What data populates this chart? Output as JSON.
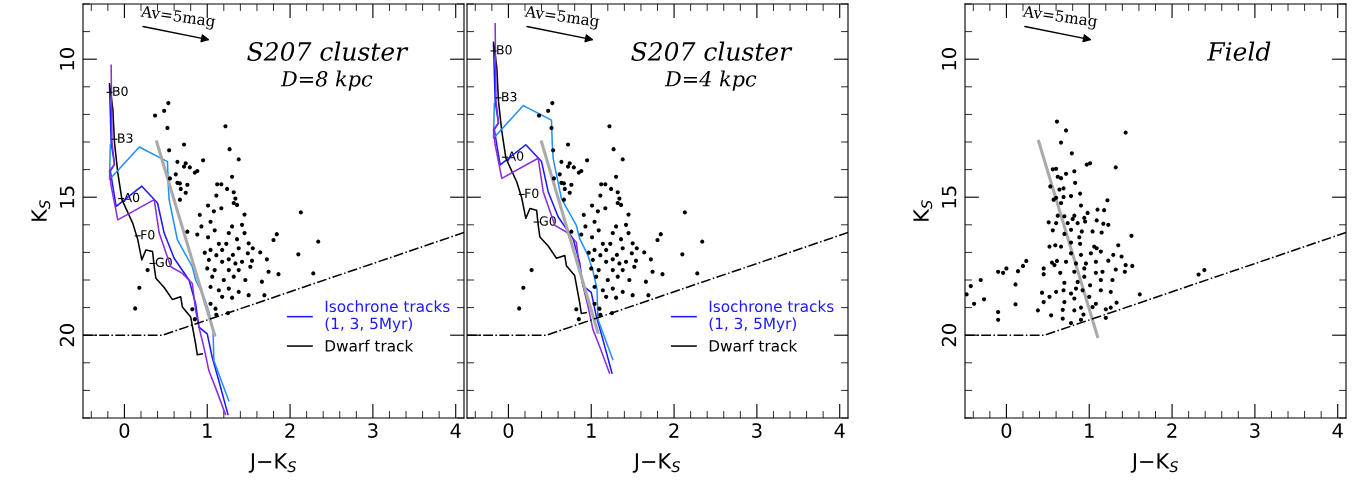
{
  "chart_data": [
    {
      "type": "scatter",
      "title": "S207 cluster",
      "subtitle": "D=8 kpc",
      "xlabel": "J−K$_{S}$",
      "ylabel": "K$_{S}$",
      "xlim": [
        -0.5,
        4.1
      ],
      "ylim": [
        23,
        8
      ],
      "xticks": [
        0,
        1,
        2,
        3,
        4
      ],
      "yticks": [
        10,
        15,
        20
      ],
      "grid": false,
      "legend": "bottom right",
      "annotations": [
        "Av=5mag",
        {
          "text": "B0",
          "x": -0.18,
          "y": 11.2
        },
        {
          "text": "B3",
          "x": -0.12,
          "y": 12.9
        },
        {
          "text": "A0",
          "x": -0.04,
          "y": 15.05
        },
        {
          "text": "F0",
          "x": 0.16,
          "y": 16.4
        },
        {
          "text": "G0",
          "x": 0.34,
          "y": 17.4
        }
      ],
      "series": [
        {
          "type": "line",
          "name": "Isochrone tracks\n(1, 3, 5Myr)",
          "color": "#1a1aff",
          "line_style": "solid",
          "x": [
            -0.18,
            -0.16,
            -0.12,
            -0.17,
            -0.14,
            -0.1,
            0.21,
            0.4,
            0.48,
            0.6,
            0.78,
            0.86,
            0.9,
            1.0,
            1.06,
            1.14,
            1.25
          ],
          "values": [
            10.95,
            13.02,
            13.81,
            14.05,
            14.6,
            15.33,
            14.6,
            15.21,
            16.3,
            17.21,
            18.0,
            18.86,
            19.71,
            19.95,
            20.8,
            21.65,
            22.87
          ]
        },
        {
          "type": "line",
          "name": "Dwarf track",
          "color": "#000000",
          "line_style": "solid",
          "x": [
            -0.18,
            -0.14,
            -0.12,
            -0.08,
            -0.03,
            0.1,
            0.16,
            0.21,
            0.26,
            0.34,
            0.36,
            0.38,
            0.48,
            0.58,
            0.68,
            0.7,
            0.8,
            0.83,
            0.86,
            0.88,
            0.94
          ],
          "values": [
            10.89,
            11.8,
            13.02,
            14.11,
            15.09,
            15.94,
            16.52,
            17.27,
            16.91,
            16.97,
            17.52,
            17.94,
            18.27,
            18.71,
            18.61,
            18.98,
            19.34,
            19.83,
            20.32,
            20.71,
            20.68
          ]
        },
        {
          "type": "line",
          "color": "#1e90ff",
          "line_style": "solid",
          "x": [
            -0.17,
            -0.18,
            0.18,
            0.52,
            0.53,
            0.54,
            0.64,
            0.82,
            0.86,
            0.96,
            1.02,
            1.07,
            1.08,
            1.17,
            1.26
          ],
          "values": [
            13.1,
            14.36,
            13.18,
            13.71,
            14.6,
            15.09,
            16.55,
            17.52,
            18.0,
            18.61,
            19.16,
            19.83,
            20.92,
            21.65,
            22.38
          ]
        },
        {
          "type": "line",
          "color": "#8a2be2",
          "line_style": "solid",
          "x": [
            -0.16,
            -0.15,
            -0.12,
            -0.18,
            -0.16,
            -0.08,
            0.36,
            0.42,
            0.56,
            0.7,
            0.82,
            0.86,
            0.9,
            0.96,
            1.02,
            1.1,
            1.22
          ],
          "values": [
            10.22,
            13.02,
            13.81,
            14.05,
            14.6,
            15.82,
            15.09,
            16.3,
            17.52,
            17.76,
            18.13,
            19.1,
            19.71,
            20.44,
            21.29,
            21.9,
            22.87
          ]
        },
        {
          "type": "line",
          "color": "#aaaaaa",
          "line_style": "solid",
          "x": [
            0.39,
            1.09
          ],
          "values": [
            13.0,
            20.0
          ]
        },
        {
          "type": "line",
          "color": "#000000",
          "line_style": "dashdot",
          "x": [
            -0.5,
            0.46,
            4.1
          ],
          "values": [
            20.0,
            20.0,
            16.28
          ]
        },
        {
          "type": "scatter",
          "color": "#000000",
          "marker": "circle",
          "x": [
            0.53,
            0.48,
            0.37,
            0.52,
            1.22,
            0.72,
            0.54,
            1.27,
            1.38,
            0.95,
            0.64,
            0.74,
            0.72,
            0.79,
            0.88,
            0.85,
            0.62,
            1.3,
            0.55,
            0.64,
            0.67,
            0.76,
            1.12,
            1.17,
            0.68,
            1.24,
            0.74,
            1.32,
            1.11,
            0.67,
            1.34,
            1.32,
            1.01,
            1.17,
            1.36,
            2.13,
            0.91,
            1.08,
            1.45,
            0.93,
            1.04,
            0.76,
            0.88,
            1.09,
            1.3,
            1.42,
            1.45,
            1.84,
            1.8,
            2.34,
            1.01,
            1.14,
            1.23,
            1.36,
            1.5,
            1.04,
            1.18,
            1.38,
            1.55,
            1.64,
            0.97,
            2.1,
            1.11,
            1.31,
            1.49,
            1.72,
            1.02,
            1.18,
            1.26,
            1.42,
            1.54,
            1.0,
            1.09,
            1.26,
            1.38,
            1.52,
            1.74,
            1.86,
            2.28,
            0.28,
            1.06,
            1.2,
            1.32,
            1.46,
            1.66,
            0.18,
            1.04,
            1.14,
            1.26,
            1.38,
            1.5,
            1.69,
            1.18,
            1.3,
            1.04,
            1.1,
            0.82,
            0.13,
            1.11,
            1.25,
            0.85,
            1.26,
            1.34
          ],
          "values": [
            11.59,
            11.87,
            12.04,
            12.49,
            12.43,
            13.09,
            13.3,
            13.26,
            13.63,
            13.66,
            13.72,
            13.77,
            13.89,
            13.92,
            14.05,
            14.11,
            14.17,
            14.26,
            14.32,
            14.48,
            14.5,
            14.55,
            14.53,
            14.53,
            14.7,
            14.7,
            14.84,
            14.82,
            14.94,
            15.09,
            15.05,
            15.21,
            15.3,
            15.4,
            15.28,
            15.55,
            15.64,
            15.51,
            15.63,
            16.06,
            15.89,
            16.25,
            16.35,
            16.2,
            16.06,
            16.0,
            16.3,
            16.34,
            16.55,
            16.61,
            16.45,
            16.69,
            16.69,
            16.52,
            16.67,
            16.91,
            16.91,
            16.85,
            16.85,
            17.0,
            17.01,
            17.07,
            17.1,
            17.09,
            17.03,
            17.25,
            17.27,
            17.34,
            17.25,
            17.34,
            17.3,
            17.58,
            17.64,
            17.64,
            17.64,
            17.52,
            17.7,
            17.79,
            17.76,
            17.64,
            17.88,
            18.0,
            17.88,
            18.0,
            18.06,
            18.28,
            18.25,
            18.37,
            18.31,
            18.43,
            18.55,
            18.55,
            18.61,
            18.64,
            18.86,
            19.04,
            19.06,
            19.03,
            19.26,
            19.2,
            19.42,
            16.3,
            17.4
          ]
        }
      ]
    },
    {
      "type": "scatter",
      "title": "S207 cluster",
      "subtitle": "D=4 kpc",
      "xlabel": "J−K$_{S}$",
      "xlim": [
        -0.5,
        4.1
      ],
      "ylim": [
        23,
        8
      ],
      "xticks": [
        0,
        1,
        2,
        3,
        4
      ],
      "yticks": [
        10,
        15,
        20
      ],
      "tick_labels": "x",
      "grid": false,
      "legend": "bottom right",
      "annotations": [
        "Av=5mag",
        {
          "text": "B0",
          "x": -0.18,
          "y": 9.7
        },
        {
          "text": "B3",
          "x": -0.12,
          "y": 11.4
        },
        {
          "text": "A0",
          "x": -0.04,
          "y": 13.55
        },
        {
          "text": "F0",
          "x": 0.16,
          "y": 14.9
        },
        {
          "text": "G0",
          "x": 0.34,
          "y": 15.9
        }
      ],
      "series": [
        {
          "type": "line",
          "name": "Isochrone tracks\n(1, 3, 5Myr)",
          "color": "#1a1aff",
          "line_style": "solid",
          "x": [
            -0.18,
            -0.16,
            -0.12,
            -0.17,
            -0.14,
            -0.1,
            0.21,
            0.4,
            0.48,
            0.6,
            0.78,
            0.86,
            0.9,
            1.0,
            1.06,
            1.14,
            1.25
          ],
          "values": [
            9.45,
            11.52,
            12.31,
            12.55,
            13.1,
            13.83,
            13.1,
            13.71,
            14.8,
            15.71,
            16.5,
            17.36,
            18.21,
            18.45,
            19.3,
            20.15,
            21.37
          ]
        },
        {
          "type": "line",
          "name": "Dwarf track",
          "color": "#000000",
          "line_style": "solid",
          "x": [
            -0.18,
            -0.14,
            -0.12,
            -0.08,
            -0.03,
            0.1,
            0.16,
            0.21,
            0.26,
            0.34,
            0.36,
            0.38,
            0.48,
            0.58,
            0.68,
            0.7,
            0.8,
            0.83,
            0.86,
            0.88,
            0.94
          ],
          "values": [
            9.39,
            10.3,
            11.52,
            12.61,
            13.59,
            14.44,
            15.02,
            15.77,
            15.41,
            15.47,
            16.02,
            16.44,
            16.77,
            17.21,
            17.11,
            17.48,
            17.84,
            18.33,
            18.82,
            19.21,
            19.18
          ]
        },
        {
          "type": "line",
          "color": "#1e90ff",
          "line_style": "solid",
          "x": [
            -0.17,
            -0.18,
            0.18,
            0.52,
            0.53,
            0.54,
            0.64,
            0.82,
            0.86,
            0.96,
            1.02,
            1.07,
            1.08,
            1.17,
            1.26
          ],
          "values": [
            11.6,
            12.86,
            11.68,
            12.21,
            13.1,
            13.59,
            15.05,
            16.02,
            16.5,
            17.11,
            17.66,
            18.33,
            19.42,
            20.15,
            20.88
          ]
        },
        {
          "type": "line",
          "color": "#8a2be2",
          "line_style": "solid",
          "x": [
            -0.16,
            -0.15,
            -0.12,
            -0.18,
            -0.16,
            -0.08,
            0.36,
            0.42,
            0.56,
            0.7,
            0.82,
            0.86,
            0.9,
            0.96,
            1.02,
            1.1,
            1.22
          ],
          "values": [
            8.72,
            11.52,
            12.31,
            12.55,
            13.1,
            14.32,
            13.59,
            14.8,
            16.02,
            16.26,
            16.63,
            17.6,
            18.21,
            18.94,
            19.79,
            20.4,
            21.37
          ]
        },
        {
          "type": "line",
          "color": "#aaaaaa",
          "line_style": "solid",
          "x": [
            0.4,
            1.08
          ],
          "values": [
            13.0,
            19.9
          ]
        },
        {
          "type": "line",
          "color": "#000000",
          "line_style": "dashdot",
          "x": [
            -0.5,
            0.46,
            4.1
          ],
          "values": [
            20.0,
            20.0,
            16.28
          ]
        },
        {
          "type": "scatter",
          "color": "#000000",
          "marker": "circle",
          "x": [
            0.53,
            0.48,
            0.37,
            0.52,
            1.22,
            0.72,
            0.54,
            1.27,
            1.38,
            0.95,
            0.64,
            0.74,
            0.72,
            0.79,
            0.88,
            0.85,
            0.62,
            1.3,
            0.55,
            0.64,
            0.67,
            0.76,
            1.12,
            1.17,
            0.68,
            1.24,
            0.74,
            1.32,
            1.11,
            0.67,
            1.34,
            1.32,
            1.01,
            1.17,
            1.36,
            2.13,
            0.91,
            1.08,
            1.45,
            0.93,
            1.04,
            0.76,
            0.88,
            1.09,
            1.3,
            1.42,
            1.45,
            1.84,
            1.8,
            2.34,
            1.01,
            1.14,
            1.23,
            1.36,
            1.5,
            1.04,
            1.18,
            1.38,
            1.55,
            1.64,
            0.97,
            2.1,
            1.11,
            1.31,
            1.49,
            1.72,
            1.02,
            1.18,
            1.26,
            1.42,
            1.54,
            1.0,
            1.09,
            1.26,
            1.38,
            1.52,
            1.74,
            1.86,
            2.28,
            0.28,
            1.06,
            1.2,
            1.32,
            1.46,
            1.66,
            0.18,
            1.04,
            1.14,
            1.26,
            1.38,
            1.5,
            1.69,
            1.18,
            1.3,
            1.04,
            1.1,
            0.82,
            0.13,
            1.11,
            1.25,
            0.85,
            1.26,
            1.34
          ],
          "values": [
            11.59,
            11.87,
            12.04,
            12.49,
            12.43,
            13.09,
            13.3,
            13.26,
            13.63,
            13.66,
            13.72,
            13.77,
            13.89,
            13.92,
            14.05,
            14.11,
            14.17,
            14.26,
            14.32,
            14.48,
            14.5,
            14.55,
            14.53,
            14.53,
            14.7,
            14.7,
            14.84,
            14.82,
            14.94,
            15.09,
            15.05,
            15.21,
            15.3,
            15.4,
            15.28,
            15.55,
            15.64,
            15.51,
            15.63,
            16.06,
            15.89,
            16.25,
            16.35,
            16.2,
            16.06,
            16.0,
            16.3,
            16.34,
            16.55,
            16.61,
            16.45,
            16.69,
            16.69,
            16.52,
            16.67,
            16.91,
            16.91,
            16.85,
            16.85,
            17.0,
            17.01,
            17.07,
            17.1,
            17.09,
            17.03,
            17.25,
            17.27,
            17.34,
            17.25,
            17.34,
            17.3,
            17.58,
            17.64,
            17.64,
            17.64,
            17.52,
            17.7,
            17.79,
            17.76,
            17.64,
            17.88,
            18.0,
            17.88,
            18.0,
            18.06,
            18.28,
            18.25,
            18.37,
            18.31,
            18.43,
            18.55,
            18.55,
            18.61,
            18.64,
            18.86,
            19.04,
            19.06,
            19.03,
            19.26,
            19.2,
            19.42,
            16.3,
            17.4
          ]
        }
      ]
    },
    {
      "type": "scatter",
      "title": "Field",
      "xlabel": "J−K$_{S}$",
      "ylabel": "K$_{S}$",
      "xlim": [
        -0.5,
        4.1
      ],
      "ylim": [
        23,
        8
      ],
      "xticks": [
        0,
        1,
        2,
        3,
        4
      ],
      "yticks": [
        10,
        15,
        20
      ],
      "grid": false,
      "annotations": [
        "Av=5mag"
      ],
      "series": [
        {
          "type": "line",
          "color": "#aaaaaa",
          "line_style": "solid",
          "x": [
            0.39,
            1.1
          ],
          "values": [
            12.98,
            20.05
          ]
        },
        {
          "type": "line",
          "color": "#000000",
          "line_style": "dashdot",
          "x": [
            -0.5,
            0.46,
            4.1
          ],
          "values": [
            20.0,
            20.0,
            16.28
          ]
        },
        {
          "type": "scatter",
          "color": "#000000",
          "marker": "circle",
          "x": [
            0.61,
            0.72,
            0.66,
            1.44,
            0.79,
            0.97,
            1.01,
            1.32,
            0.56,
            0.6,
            0.82,
            0.72,
            0.62,
            0.66,
            0.83,
            0.53,
            0.69,
            0.64,
            0.69,
            0.78,
            0.57,
            0.6,
            0.89,
            1.22,
            0.9,
            0.66,
            1.1,
            1.18,
            0.98,
            0.62,
            0.7,
            0.82,
            0.51,
            0.6,
            0.74,
            0.86,
            0.95,
            1.09,
            1.17,
            1.23,
            0.56,
            0.7,
            0.78,
            0.91,
            1.04,
            1.15,
            1.51,
            0.66,
            0.78,
            0.89,
            1.09,
            1.35,
            0.52,
            0.59,
            0.78,
            0.9,
            1.02,
            1.14,
            1.29,
            1.39,
            0.24,
            0.2,
            0.0,
            -0.04,
            -0.1,
            0.14,
            0.45,
            0.45,
            0.55,
            0.58,
            0.61,
            0.72,
            0.84,
            0.96,
            1.08,
            1.23,
            1.44,
            1.52,
            1.32,
            0.65,
            0.82,
            0.94,
            1.08,
            1.16,
            1.43,
            -0.31,
            -0.43,
            -0.48,
            -0.27,
            -0.39,
            0.11,
            0.11,
            -0.1,
            -0.1,
            0.7,
            0.86,
            1.01,
            1.14,
            1.28,
            0.43,
            0.45,
            0.52,
            0.6,
            0.69,
            0.78,
            0.92,
            1.0,
            1.14,
            1.26,
            1.61,
            0.7,
            0.82,
            1.08,
            1.33,
            0.38,
            0.54,
            0.68,
            0.82,
            0.9,
            1.04,
            1.2,
            1.26,
            0.68,
            0.78,
            0.9,
            0.93,
            1.2,
            2.32,
            2.39,
            0.84,
            0.94,
            1.06,
            0.88,
            0.8,
            0.94
          ],
          "values": [
            12.26,
            12.58,
            13.02,
            12.66,
            13.41,
            13.82,
            13.77,
            13.92,
            13.99,
            13.97,
            14.06,
            14.15,
            14.26,
            14.31,
            14.48,
            14.61,
            14.68,
            14.72,
            14.99,
            14.96,
            15.09,
            15.02,
            14.87,
            15.11,
            15.3,
            15.21,
            15.45,
            15.47,
            15.57,
            15.67,
            15.69,
            15.67,
            15.91,
            15.94,
            15.94,
            15.94,
            15.88,
            15.84,
            15.96,
            16.0,
            16.2,
            16.33,
            16.18,
            16.24,
            16.24,
            16.28,
            16.4,
            16.79,
            16.64,
            16.69,
            16.85,
            16.74,
            16.79,
            16.74,
            17.03,
            17.09,
            17.03,
            16.97,
            17.09,
            17.15,
            17.31,
            17.49,
            17.58,
            17.74,
            17.7,
            17.68,
            17.58,
            17.79,
            17.37,
            17.46,
            17.31,
            17.34,
            17.4,
            17.4,
            17.34,
            17.3,
            17.46,
            17.49,
            17.62,
            17.74,
            17.7,
            17.88,
            17.74,
            17.7,
            17.7,
            18.0,
            18.22,
            18.52,
            18.7,
            18.86,
            18.16,
            18.88,
            19.16,
            19.44,
            18.1,
            18.07,
            18.19,
            18.0,
            18.0,
            18.46,
            18.8,
            18.61,
            18.43,
            18.37,
            18.49,
            18.37,
            18.61,
            18.37,
            18.43,
            18.52,
            18.8,
            18.67,
            18.86,
            18.82,
            19.1,
            19.28,
            19.08,
            19.1,
            19.0,
            18.98,
            19.06,
            19.0,
            19.4,
            19.56,
            19.44,
            19.25,
            19.37,
            17.8,
            17.64,
            18.31,
            17.58,
            16.79,
            16.45,
            15.79,
            15.75
          ]
        }
      ]
    }
  ]
}
